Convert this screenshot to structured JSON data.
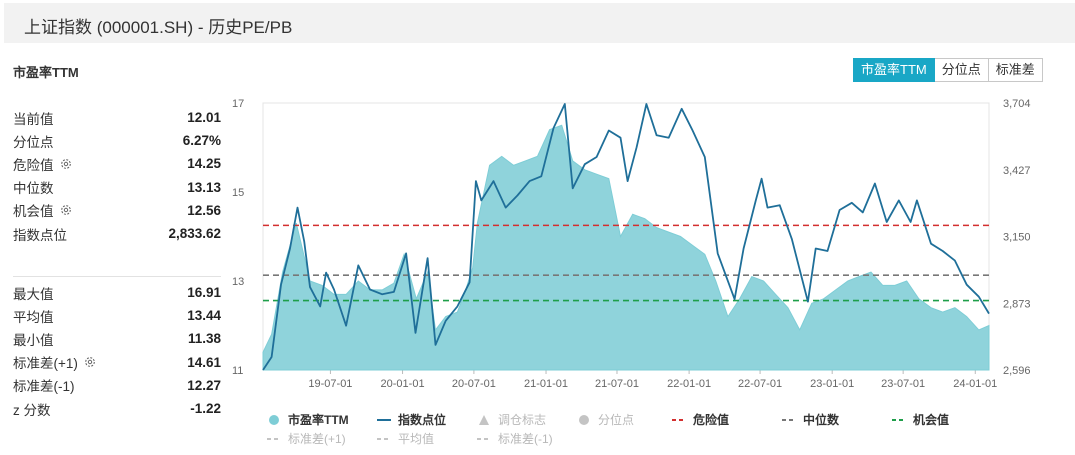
{
  "header": {
    "title": "上证指数 (000001.SH) - 历史PE/PB"
  },
  "section": {
    "title": "市盈率TTM"
  },
  "tabs": [
    {
      "label": "市盈率TTM",
      "active": true
    },
    {
      "label": "分位点",
      "active": false
    },
    {
      "label": "标准差",
      "active": false
    }
  ],
  "stats_top": [
    {
      "label": "当前值",
      "value": "12.01",
      "gear": false
    },
    {
      "label": "分位点",
      "value": "6.27%",
      "gear": false
    },
    {
      "label": "危险值",
      "value": "14.25",
      "gear": true
    },
    {
      "label": "中位数",
      "value": "13.13",
      "gear": false
    },
    {
      "label": "机会值",
      "value": "12.56",
      "gear": true
    },
    {
      "label": "指数点位",
      "value": "2,833.62",
      "gear": false
    }
  ],
  "stats_bottom": [
    {
      "label": "最大值",
      "value": "16.91",
      "gear": false
    },
    {
      "label": "平均值",
      "value": "13.44",
      "gear": false
    },
    {
      "label": "最小值",
      "value": "11.38",
      "gear": false
    },
    {
      "label": "标准差(+1)",
      "value": "14.61",
      "gear": true
    },
    {
      "label": "标准差(-1)",
      "value": "12.27",
      "gear": false
    },
    {
      "label": "z 分数",
      "value": "-1.22",
      "gear": false
    }
  ],
  "legend": [
    {
      "label": "市盈率TTM",
      "symbol": "dot",
      "color": "#7ecdd6",
      "active": true
    },
    {
      "label": "指数点位",
      "symbol": "line",
      "color": "#1f6f99",
      "active": true
    },
    {
      "label": "调仓标志",
      "symbol": "triangle",
      "color": "#c4c4c4",
      "active": false
    },
    {
      "label": "分位点",
      "symbol": "dot",
      "color": "#c4c4c4",
      "active": false
    },
    {
      "label": "危险值",
      "symbol": "dash",
      "color": "#d32f2f",
      "active": true
    },
    {
      "label": "中位数",
      "symbol": "dash",
      "color": "#777777",
      "active": true
    },
    {
      "label": "机会值",
      "symbol": "dash",
      "color": "#1e9e4a",
      "active": true
    },
    {
      "label": "标准差(+1)",
      "symbol": "dash",
      "color": "#c4c4c4",
      "active": false
    },
    {
      "label": "平均值",
      "symbol": "dash",
      "color": "#c4c4c4",
      "active": false
    },
    {
      "label": "标准差(-1)",
      "symbol": "dash",
      "color": "#c4c4c4",
      "active": false
    }
  ],
  "chart_data": {
    "type": "area",
    "x_ticks": [
      "19-07-01",
      "20-01-01",
      "20-07-01",
      "21-01-01",
      "21-07-01",
      "22-01-01",
      "22-07-01",
      "23-01-01",
      "23-07-01",
      "24-01-01"
    ],
    "x_range": [
      "2019-01-10",
      "2024-02-05"
    ],
    "y_left": {
      "ticks": [
        "11",
        "13",
        "15",
        "17"
      ],
      "range": [
        11,
        17
      ]
    },
    "y_right": {
      "ticks": [
        "2,596",
        "2,873",
        "3,150",
        "3,427",
        "3,704"
      ],
      "range": [
        2596,
        3704
      ]
    },
    "reference_lines": [
      {
        "name": "危险值",
        "value": 14.25,
        "color": "#d32f2f"
      },
      {
        "name": "中位数",
        "value": 13.13,
        "color": "#777777"
      },
      {
        "name": "机会值",
        "value": 12.56,
        "color": "#1e9e4a"
      }
    ],
    "series": [
      {
        "name": "市盈率TTM",
        "axis": "left",
        "style": "area",
        "color": "#7ecdd6",
        "points": [
          [
            "2019-01-10",
            11.4
          ],
          [
            "2019-02-01",
            11.8
          ],
          [
            "2019-03-01",
            13.2
          ],
          [
            "2019-04-05",
            14.3
          ],
          [
            "2019-05-10",
            13.0
          ],
          [
            "2019-06-10",
            12.9
          ],
          [
            "2019-07-10",
            12.7
          ],
          [
            "2019-08-10",
            12.7
          ],
          [
            "2019-09-10",
            13.0
          ],
          [
            "2019-10-10",
            12.8
          ],
          [
            "2019-11-10",
            12.8
          ],
          [
            "2019-12-10",
            12.95
          ],
          [
            "2020-01-05",
            13.6
          ],
          [
            "2020-02-05",
            12.6
          ],
          [
            "2020-03-05",
            13.2
          ],
          [
            "2020-03-25",
            11.9
          ],
          [
            "2020-04-20",
            12.2
          ],
          [
            "2020-05-20",
            12.3
          ],
          [
            "2020-06-10",
            12.8
          ],
          [
            "2020-06-28",
            13.3
          ],
          [
            "2020-07-10",
            14.3
          ],
          [
            "2020-08-10",
            15.6
          ],
          [
            "2020-09-10",
            15.8
          ],
          [
            "2020-10-10",
            15.6
          ],
          [
            "2020-11-10",
            15.7
          ],
          [
            "2020-12-10",
            15.8
          ],
          [
            "2021-01-10",
            16.4
          ],
          [
            "2021-02-10",
            16.5
          ],
          [
            "2021-03-10",
            15.7
          ],
          [
            "2021-04-10",
            15.5
          ],
          [
            "2021-05-10",
            15.4
          ],
          [
            "2021-06-10",
            15.3
          ],
          [
            "2021-07-10",
            14.0
          ],
          [
            "2021-08-10",
            14.5
          ],
          [
            "2021-09-10",
            14.4
          ],
          [
            "2021-10-10",
            14.2
          ],
          [
            "2021-11-10",
            14.1
          ],
          [
            "2021-12-10",
            14.0
          ],
          [
            "2022-01-10",
            13.8
          ],
          [
            "2022-02-10",
            13.6
          ],
          [
            "2022-03-10",
            13.0
          ],
          [
            "2022-04-10",
            12.2
          ],
          [
            "2022-05-10",
            12.6
          ],
          [
            "2022-06-10",
            13.1
          ],
          [
            "2022-07-10",
            13.0
          ],
          [
            "2022-08-10",
            12.7
          ],
          [
            "2022-09-10",
            12.4
          ],
          [
            "2022-10-10",
            11.9
          ],
          [
            "2022-11-10",
            12.5
          ],
          [
            "2022-12-10",
            12.6
          ],
          [
            "2023-01-10",
            12.8
          ],
          [
            "2023-02-10",
            13.0
          ],
          [
            "2023-03-10",
            13.1
          ],
          [
            "2023-04-10",
            13.2
          ],
          [
            "2023-05-10",
            12.9
          ],
          [
            "2023-06-10",
            12.9
          ],
          [
            "2023-07-10",
            13.0
          ],
          [
            "2023-08-10",
            12.6
          ],
          [
            "2023-09-10",
            12.4
          ],
          [
            "2023-10-10",
            12.3
          ],
          [
            "2023-11-10",
            12.4
          ],
          [
            "2023-12-10",
            12.2
          ],
          [
            "2024-01-10",
            11.9
          ],
          [
            "2024-02-05",
            12.0
          ]
        ]
      },
      {
        "name": "指数点位",
        "axis": "right",
        "style": "line",
        "color": "#1f6f99",
        "points": [
          [
            "2019-01-10",
            2596
          ],
          [
            "2019-02-01",
            2650
          ],
          [
            "2019-02-25",
            2950
          ],
          [
            "2019-03-20",
            3100
          ],
          [
            "2019-04-08",
            3270
          ],
          [
            "2019-04-25",
            3130
          ],
          [
            "2019-05-10",
            2940
          ],
          [
            "2019-06-05",
            2860
          ],
          [
            "2019-06-20",
            3000
          ],
          [
            "2019-07-10",
            2930
          ],
          [
            "2019-08-10",
            2780
          ],
          [
            "2019-09-10",
            3030
          ],
          [
            "2019-10-10",
            2930
          ],
          [
            "2019-11-10",
            2910
          ],
          [
            "2019-12-10",
            2920
          ],
          [
            "2020-01-10",
            3080
          ],
          [
            "2020-02-03",
            2750
          ],
          [
            "2020-03-05",
            3060
          ],
          [
            "2020-03-25",
            2700
          ],
          [
            "2020-04-20",
            2800
          ],
          [
            "2020-05-20",
            2860
          ],
          [
            "2020-06-20",
            2960
          ],
          [
            "2020-07-06",
            3380
          ],
          [
            "2020-07-20",
            3300
          ],
          [
            "2020-08-20",
            3380
          ],
          [
            "2020-09-20",
            3270
          ],
          [
            "2020-10-20",
            3320
          ],
          [
            "2020-11-20",
            3380
          ],
          [
            "2020-12-20",
            3400
          ],
          [
            "2021-01-20",
            3600
          ],
          [
            "2021-02-18",
            3700
          ],
          [
            "2021-03-10",
            3350
          ],
          [
            "2021-04-10",
            3450
          ],
          [
            "2021-05-10",
            3480
          ],
          [
            "2021-06-10",
            3590
          ],
          [
            "2021-07-10",
            3560
          ],
          [
            "2021-07-28",
            3380
          ],
          [
            "2021-08-20",
            3520
          ],
          [
            "2021-09-14",
            3700
          ],
          [
            "2021-10-10",
            3570
          ],
          [
            "2021-11-10",
            3560
          ],
          [
            "2021-12-13",
            3680
          ],
          [
            "2022-01-10",
            3590
          ],
          [
            "2022-02-10",
            3480
          ],
          [
            "2022-03-15",
            3080
          ],
          [
            "2022-04-27",
            2890
          ],
          [
            "2022-05-20",
            3100
          ],
          [
            "2022-06-20",
            3300
          ],
          [
            "2022-07-05",
            3390
          ],
          [
            "2022-07-20",
            3270
          ],
          [
            "2022-08-20",
            3280
          ],
          [
            "2022-09-20",
            3140
          ],
          [
            "2022-10-31",
            2880
          ],
          [
            "2022-11-20",
            3100
          ],
          [
            "2022-12-20",
            3090
          ],
          [
            "2023-01-20",
            3260
          ],
          [
            "2023-02-20",
            3290
          ],
          [
            "2023-03-20",
            3250
          ],
          [
            "2023-04-20",
            3370
          ],
          [
            "2023-05-20",
            3210
          ],
          [
            "2023-06-20",
            3300
          ],
          [
            "2023-07-20",
            3210
          ],
          [
            "2023-08-05",
            3300
          ],
          [
            "2023-09-10",
            3120
          ],
          [
            "2023-10-10",
            3090
          ],
          [
            "2023-11-10",
            3050
          ],
          [
            "2023-12-10",
            2950
          ],
          [
            "2024-01-10",
            2900
          ],
          [
            "2024-02-05",
            2830
          ]
        ]
      }
    ]
  }
}
